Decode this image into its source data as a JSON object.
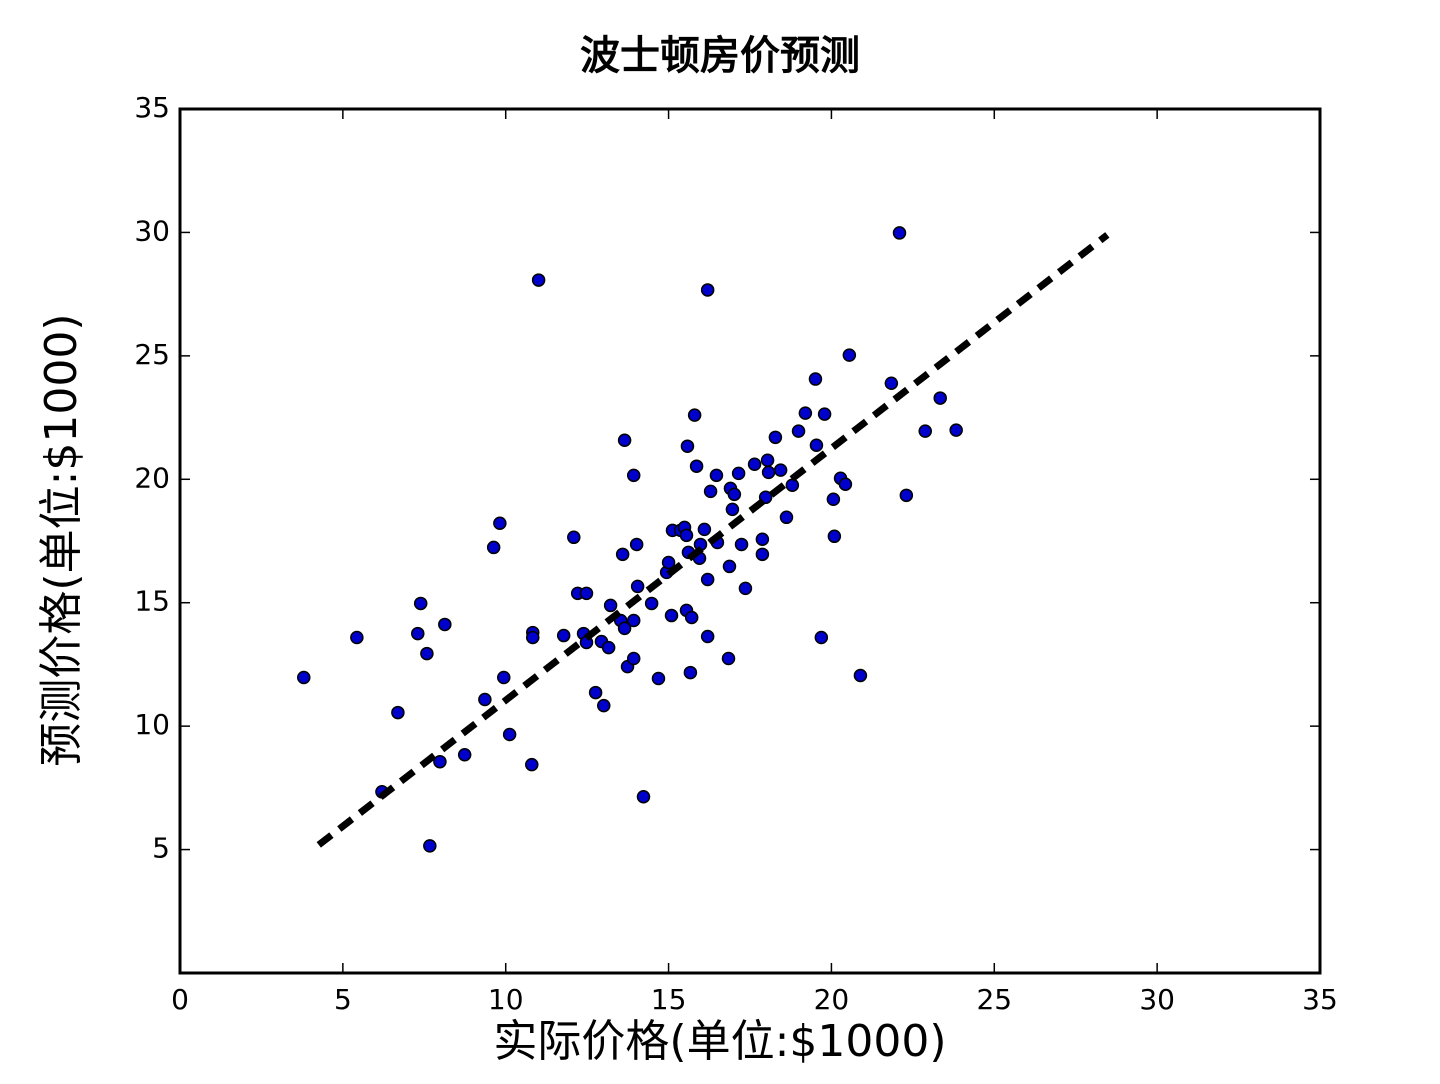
{
  "chart_data": {
    "type": "scatter",
    "title": "波士顿房价预测",
    "xlabel": "实际价格(单位:$1000)",
    "ylabel": "预测价格(单位:$1000)",
    "xlim": [
      0,
      35
    ],
    "ylim": [
      0,
      35
    ],
    "xticks": [
      0,
      5,
      10,
      15,
      20,
      25,
      30,
      35
    ],
    "yticks": [
      5,
      10,
      15,
      20,
      25,
      30,
      35
    ],
    "series": [
      {
        "color": "#0000cc",
        "x": [
          3.8,
          5.43,
          6.2,
          6.69,
          7.3,
          7.39,
          7.58,
          7.67,
          7.98,
          8.13,
          8.74,
          9.36,
          9.63,
          9.82,
          9.94,
          10.12,
          10.8,
          10.83,
          10.83,
          11.01,
          11.78,
          12.09,
          12.21,
          12.48,
          12.39,
          12.48,
          12.76,
          12.94,
          13.01,
          13.16,
          13.22,
          13.53,
          13.59,
          13.65,
          13.65,
          13.74,
          13.93,
          13.93,
          13.93,
          14.02,
          14.05,
          14.23,
          14.48,
          14.69,
          14.94,
          15.0,
          15.09,
          15.12,
          15.37,
          15.49,
          15.55,
          15.55,
          15.58,
          15.61,
          15.71,
          15.67,
          15.8,
          15.86,
          15.95,
          15.98,
          16.1,
          16.2,
          16.2,
          16.2,
          16.29,
          16.47,
          16.5,
          16.84,
          16.87,
          16.9,
          16.96,
          17.02,
          17.15,
          17.24,
          17.36,
          17.64,
          17.88,
          17.88,
          17.98,
          18.04,
          18.07,
          18.28,
          18.44,
          18.62,
          18.8,
          18.99,
          19.2,
          19.51,
          19.54,
          19.69,
          19.79,
          20.06,
          20.09,
          20.28,
          20.43,
          20.55,
          20.89,
          21.84,
          22.09,
          22.3,
          22.88,
          23.34,
          23.83
        ],
        "values": [
          11.97,
          13.59,
          7.34,
          10.55,
          13.75,
          14.97,
          12.94,
          5.15,
          8.56,
          14.12,
          8.84,
          11.08,
          17.24,
          18.22,
          11.97,
          9.66,
          8.44,
          13.79,
          13.59,
          28.07,
          13.67,
          17.65,
          15.38,
          15.38,
          13.75,
          13.39,
          11.36,
          13.43,
          10.83,
          13.18,
          14.89,
          14.28,
          16.96,
          13.96,
          21.58,
          12.41,
          14.28,
          12.74,
          20.16,
          17.36,
          15.66,
          7.14,
          14.97,
          11.93,
          16.23,
          16.63,
          14.48,
          17.93,
          17.93,
          18.05,
          14.69,
          17.73,
          21.34,
          17.04,
          14.4,
          12.17,
          22.6,
          20.53,
          16.8,
          17.36,
          17.97,
          27.67,
          15.94,
          13.63,
          19.51,
          20.16,
          17.44,
          12.74,
          16.47,
          19.63,
          18.78,
          19.39,
          20.24,
          17.36,
          15.58,
          20.61,
          16.96,
          17.57,
          19.27,
          20.77,
          20.28,
          21.7,
          20.37,
          18.46,
          19.76,
          21.95,
          22.68,
          24.06,
          21.38,
          13.59,
          22.64,
          19.19,
          17.69,
          20.04,
          19.8,
          25.03,
          12.05,
          23.89,
          29.98,
          19.35,
          21.95,
          23.29,
          21.99
        ]
      }
    ],
    "fit_line": {
      "color": "#000000",
      "style": "dashed",
      "x": [
        4.26,
        28.47
      ],
      "values": [
        5.19,
        29.9
      ]
    }
  }
}
